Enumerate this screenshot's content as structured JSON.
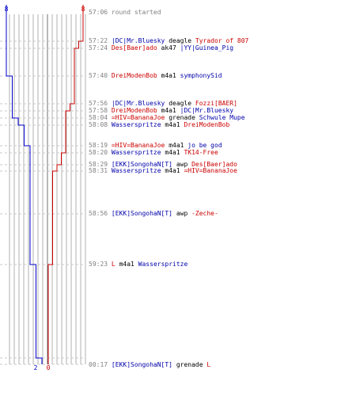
{
  "colors": {
    "blue_team": "#0000cc",
    "red_team": "#cc0000",
    "grid": "#b0b0b0",
    "timestamp": "#808080",
    "weapon": "#000000"
  },
  "graph": {
    "blue_start_count": "8",
    "red_start_count": "8",
    "blue_end_count": "2",
    "red_end_count": "0",
    "blue_alive": [
      8,
      8,
      8,
      7,
      7,
      7,
      6,
      5,
      4,
      4,
      4,
      4,
      4,
      3,
      2,
      2
    ],
    "red_alive": [
      8,
      7,
      6,
      6,
      5,
      4,
      4,
      4,
      4,
      3,
      2,
      1,
      1,
      0,
      0,
      0
    ]
  },
  "events": [
    {
      "time": "57:06",
      "status": "round started"
    },
    {
      "time": "57:22",
      "killer": "|DC|Mr.Bluesky",
      "killer_team": "blue",
      "weapon": "deagle",
      "victim": "Tyrador of 807",
      "victim_team": "red"
    },
    {
      "time": "57:24",
      "killer": "Des[Baer]ado",
      "killer_team": "red",
      "weapon": "ak47",
      "victim": "|YY|Guinea_Pig",
      "victim_team": "blue"
    },
    {
      "time": "57:40",
      "killer": "DreiModenBob",
      "killer_team": "red",
      "weapon": "m4a1",
      "victim": "symphonySid",
      "victim_team": "blue"
    },
    {
      "time": "57:56",
      "killer": "|DC|Mr.Bluesky",
      "killer_team": "blue",
      "weapon": "deagle",
      "victim": "Fozzi[BAER]",
      "victim_team": "red"
    },
    {
      "time": "57:58",
      "killer": "DreiModenBob",
      "killer_team": "red",
      "weapon": "m4a1",
      "victim": "|DC|Mr.Bluesky",
      "victim_team": "blue"
    },
    {
      "time": "58:04",
      "killer": "=HIV=BananaJoe",
      "killer_team": "red",
      "weapon": "grenade",
      "victim": "Schwule Mupe",
      "victim_team": "blue"
    },
    {
      "time": "58:08",
      "killer": "Wasserspritze",
      "killer_team": "blue",
      "weapon": "m4a1",
      "victim": "DreiModenBob",
      "victim_team": "red"
    },
    {
      "time": "58:19",
      "killer": "=HIV=BananaJoe",
      "killer_team": "red",
      "weapon": "m4a1",
      "victim": "jo be god",
      "victim_team": "blue"
    },
    {
      "time": "58:20",
      "killer": "Wasserspritze",
      "killer_team": "blue",
      "weapon": "m4a1",
      "victim": "TK14-Free",
      "victim_team": "red"
    },
    {
      "time": "58:29",
      "killer": "[EKK]SongohaN[T]",
      "killer_team": "blue",
      "weapon": "awp",
      "victim": "Des[Baer]ado",
      "victim_team": "red"
    },
    {
      "time": "58:31",
      "killer": "Wasserspritze",
      "killer_team": "blue",
      "weapon": "m4a1",
      "victim": "=HIV=BananaJoe",
      "victim_team": "red"
    },
    {
      "time": "58:56",
      "killer": "[EKK]SongohaN[T]",
      "killer_team": "blue",
      "weapon": "awp",
      "victim": "-Zeche-",
      "victim_team": "red"
    },
    {
      "time": "59:23",
      "killer": "L",
      "killer_team": "red",
      "weapon": "m4a1",
      "victim": "Wasserspritze",
      "victim_team": "blue"
    },
    {
      "time": "00:17",
      "killer": "[EKK]SongohaN[T]",
      "killer_team": "blue",
      "weapon": "grenade",
      "victim": "L",
      "victim_team": "red"
    }
  ]
}
